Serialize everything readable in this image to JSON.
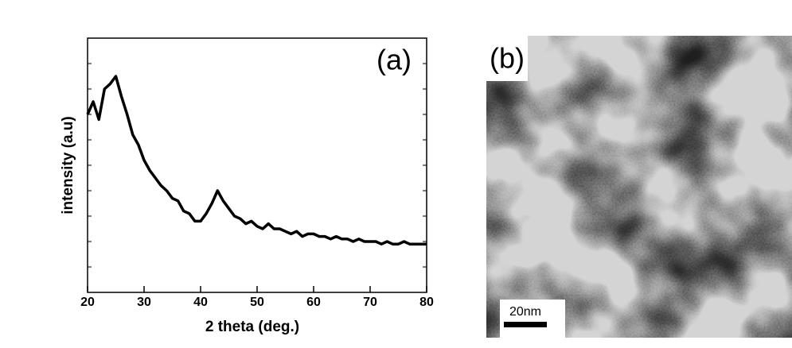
{
  "chart_data": {
    "type": "line",
    "annotation": "(a)",
    "xlabel": "2 theta (deg.)",
    "ylabel": "intensity (a.u)",
    "x": [
      20,
      21,
      22,
      23,
      24,
      25,
      26,
      27,
      28,
      29,
      30,
      31,
      32,
      33,
      34,
      35,
      36,
      37,
      38,
      39,
      40,
      41,
      42,
      43,
      44,
      45,
      46,
      47,
      48,
      49,
      50,
      51,
      52,
      53,
      54,
      55,
      56,
      57,
      58,
      59,
      60,
      61,
      62,
      63,
      64,
      65,
      66,
      67,
      68,
      69,
      70,
      71,
      72,
      73,
      74,
      75,
      76,
      77,
      78,
      79,
      80
    ],
    "values": [
      70,
      75,
      68,
      80,
      82,
      85,
      77,
      70,
      62,
      58,
      52,
      48,
      45,
      42,
      40,
      37,
      36,
      32,
      31,
      28,
      28,
      31,
      35,
      40,
      36,
      33,
      30,
      29,
      27,
      28,
      26,
      25,
      27,
      25,
      25,
      24,
      23,
      24,
      22,
      23,
      23,
      22,
      22,
      21,
      22,
      21,
      21,
      20,
      21,
      20,
      20,
      20,
      19,
      20,
      19,
      19,
      20,
      19,
      19,
      19,
      19
    ],
    "color": "#000000",
    "xlim": [
      20,
      80
    ],
    "xticks": [
      20,
      30,
      40,
      50,
      60,
      70,
      80
    ],
    "ylim": [
      0,
      100
    ]
  },
  "image_panel": {
    "label": "(b)",
    "scale_bar": "20nm"
  }
}
